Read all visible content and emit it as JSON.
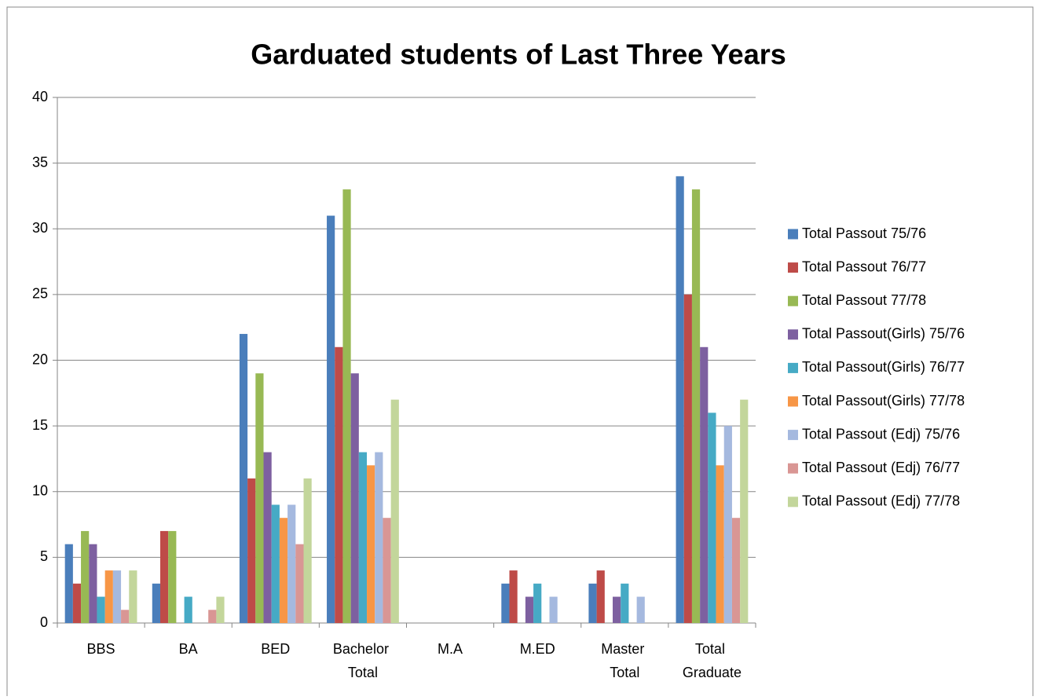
{
  "chart_data": {
    "type": "bar",
    "title": "Garduated  students of Last Three Years",
    "categories": [
      "BBS",
      "BA",
      "BED",
      "Bachelor Total",
      "M.A",
      "M.ED",
      "Master Total",
      "Total Graduate"
    ],
    "series": [
      {
        "name": "Total Passout 75/76",
        "color": "#4a7ebb",
        "values": [
          6,
          3,
          22,
          31,
          0,
          3,
          3,
          34
        ]
      },
      {
        "name": "Total Passout 76/77",
        "color": "#be4b48",
        "values": [
          3,
          7,
          11,
          21,
          0,
          4,
          4,
          25
        ]
      },
      {
        "name": "Total Passout 77/78",
        "color": "#98b954",
        "values": [
          7,
          7,
          19,
          33,
          0,
          0,
          0,
          33
        ]
      },
      {
        "name": "Total Passout(Girls) 75/76",
        "color": "#7d60a0",
        "values": [
          6,
          0,
          13,
          19,
          0,
          2,
          2,
          21
        ]
      },
      {
        "name": "Total Passout(Girls) 76/77",
        "color": "#46aac5",
        "values": [
          2,
          2,
          9,
          13,
          0,
          3,
          3,
          16
        ]
      },
      {
        "name": "Total Passout(Girls) 77/78",
        "color": "#f79646",
        "values": [
          4,
          0,
          8,
          12,
          0,
          0,
          0,
          12
        ]
      },
      {
        "name": "Total Passout (Edj) 75/76",
        "color": "#a5b9df",
        "values": [
          4,
          0,
          9,
          13,
          0,
          2,
          2,
          15
        ]
      },
      {
        "name": "Total Passout (Edj) 76/77",
        "color": "#d99694",
        "values": [
          1,
          1,
          6,
          8,
          0,
          0,
          0,
          8
        ]
      },
      {
        "name": "Total Passout (Edj) 77/78",
        "color": "#c3d69b",
        "values": [
          4,
          2,
          11,
          17,
          0,
          0,
          0,
          17
        ]
      }
    ],
    "ylim": [
      0,
      40
    ],
    "yticks": [
      0,
      5,
      10,
      15,
      20,
      25,
      30,
      35,
      40
    ],
    "grid": true,
    "legend": "right"
  }
}
